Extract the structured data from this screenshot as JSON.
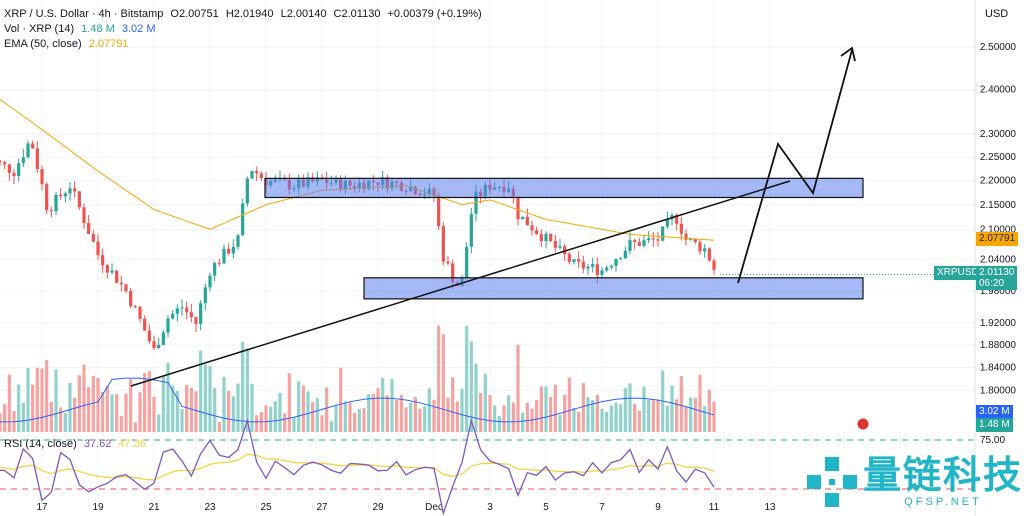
{
  "header": {
    "symbol": "XRP / U.S. Dollar · 4h · Bitstamp",
    "open": "O2.00751",
    "high": "H2.01940",
    "low": "L2.00140",
    "close": "C2.01130",
    "change": "+0.00379 (+0.19%)"
  },
  "vol_legend": {
    "label": "Vol · XRP (14)",
    "v1": "1.48 M",
    "v2": "3.02 M"
  },
  "ema_legend": {
    "label": "EMA (50, close)",
    "value": "2.07791"
  },
  "rsi_legend": {
    "label": "RSI (14, close)",
    "v1": "37.62",
    "v2": "47.36"
  },
  "currency": "USD",
  "tags": {
    "ema": "2.07791",
    "symbol": "XRPUSD",
    "price": "2.01130",
    "countdown": "06:20",
    "vol_blue": "3.02 M",
    "vol_green": "1.48 M",
    "rsi_level": "75.00"
  },
  "colors": {
    "up": "#26a69a",
    "down": "#ef5350",
    "ema": "#f7a600",
    "rsi": "#7e57c2",
    "rsi_ma": "#f5d33c",
    "zone": "#5b7ff0"
  },
  "watermark": {
    "text": "量链科技",
    "sub": "QFSP.NET"
  },
  "chart_data": {
    "type": "candlestick",
    "yscale": "log",
    "ylim": [
      1.78,
      2.56
    ],
    "y_ticks": [
      "2.50000",
      "2.40000",
      "2.30000",
      "2.25000",
      "2.20000",
      "2.15000",
      "2.10000",
      "2.04000",
      "1.98000",
      "1.92000",
      "1.88000",
      "1.84000",
      "1.80000"
    ],
    "x_ticks": [
      "17",
      "19",
      "21",
      "23",
      "25",
      "27",
      "29",
      "Dec",
      "3",
      "5",
      "7",
      "9",
      "11",
      "13"
    ],
    "price_path": [
      [
        15,
        2.25
      ],
      [
        16,
        2.22
      ],
      [
        16.6,
        2.29
      ],
      [
        17.2,
        2.14
      ],
      [
        18,
        2.19
      ],
      [
        19,
        2.05
      ],
      [
        20,
        1.98
      ],
      [
        21,
        1.87
      ],
      [
        21.5,
        1.93
      ],
      [
        22,
        1.95
      ],
      [
        22.5,
        1.92
      ],
      [
        23,
        2.02
      ],
      [
        23.5,
        2.05
      ],
      [
        24,
        2.08
      ],
      [
        24.4,
        2.23
      ],
      [
        25,
        2.2
      ],
      [
        26,
        2.19
      ],
      [
        27,
        2.2
      ],
      [
        28,
        2.19
      ],
      [
        29,
        2.2
      ],
      [
        30,
        2.19
      ],
      [
        31,
        2.17
      ],
      [
        31.3,
        2.05
      ],
      [
        31.8,
        1.99
      ],
      [
        32,
        2.0
      ],
      [
        32.4,
        2.16
      ],
      [
        33,
        2.19
      ],
      [
        33.7,
        2.19
      ],
      [
        34,
        2.13
      ],
      [
        35,
        2.08
      ],
      [
        36,
        2.03
      ],
      [
        37,
        2.02
      ],
      [
        38,
        2.07
      ],
      [
        39,
        2.08
      ],
      [
        39.6,
        2.13
      ],
      [
        40,
        2.08
      ],
      [
        40.7,
        2.06
      ],
      [
        41.1,
        2.01
      ]
    ],
    "ema_path": [
      [
        15,
        2.4
      ],
      [
        17,
        2.31
      ],
      [
        19,
        2.22
      ],
      [
        21,
        2.14
      ],
      [
        23,
        2.1
      ],
      [
        25,
        2.15
      ],
      [
        27,
        2.18
      ],
      [
        30,
        2.19
      ],
      [
        32,
        2.15
      ],
      [
        33,
        2.16
      ],
      [
        35,
        2.12
      ],
      [
        38,
        2.09
      ],
      [
        41.1,
        2.078
      ]
    ],
    "annotations": {
      "zones": [
        [
          2.165,
          2.205
        ],
        [
          1.965,
          2.005
        ]
      ],
      "trendline": [
        [
          20.2,
          1.82
        ],
        [
          43.8,
          2.2
        ]
      ]
    }
  }
}
